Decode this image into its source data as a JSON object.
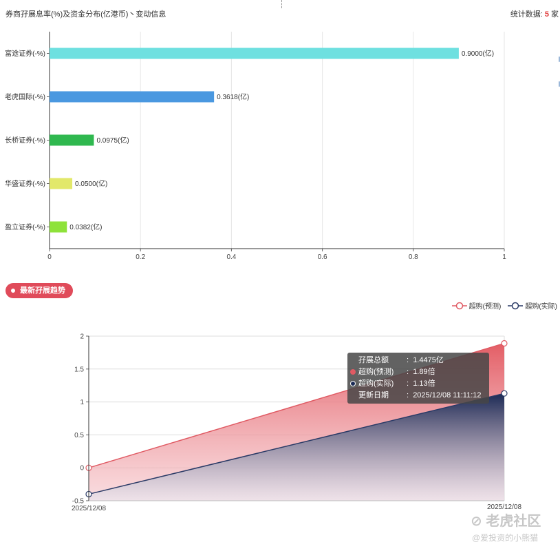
{
  "header": {
    "title": "券商孖展息率(%)及资金分布(亿港币)丶变动信息",
    "stats_label": "统计数据:",
    "stats_count": "5",
    "stats_unit": "家"
  },
  "colors": {
    "red": "#e05a63",
    "navy": "#2a3a66",
    "stats": "#e03c3c",
    "tag": "#e04b5a"
  },
  "chart_data": [
    {
      "type": "bar",
      "orientation": "horizontal",
      "categories": [
        "富途证券(-%)",
        "老虎国际(-%)",
        "长桥证券(-%)",
        "华盛证券(-%)",
        "盈立证券(-%)"
      ],
      "values": [
        0.9,
        0.3618,
        0.0975,
        0.05,
        0.0382
      ],
      "data_labels": [
        "0.9000(亿)",
        "0.3618(亿)",
        "0.0975(亿)",
        "0.0500(亿)",
        "0.0382(亿)"
      ],
      "colors": [
        "#6ee0e0",
        "#4a98e0",
        "#2fb84f",
        "#e2e86a",
        "#8ee23a"
      ],
      "xlim": [
        0,
        1
      ],
      "xticks": [
        "0",
        "0.2",
        "0.4",
        "0.6",
        "0.8",
        "1"
      ],
      "grid": true
    },
    {
      "type": "area",
      "x": [
        "2025/12/08",
        "2025/12/08"
      ],
      "ylim": [
        -0.5,
        2
      ],
      "yticks": [
        "2",
        "1.5",
        "1",
        "0.5",
        "0",
        "-0.5"
      ],
      "series": [
        {
          "name": "超购(预测)",
          "values": [
            0,
            1.89
          ],
          "color": "#e05a63"
        },
        {
          "name": "超购(实际)",
          "values": [
            -0.4,
            1.13
          ],
          "color": "#2a3a66"
        }
      ],
      "legend_position": "top-right",
      "grid": true
    }
  ],
  "trend": {
    "tag_label": "最新孖展趋势"
  },
  "tooltip": {
    "rows": [
      {
        "label": "孖展总额",
        "value": "1.4475亿",
        "dot": ""
      },
      {
        "label": "超购(预测)",
        "value": "1.89倍",
        "dot": "#e05a63"
      },
      {
        "label": "超购(实际)",
        "value": "1.13倍",
        "dot": "#1a2a55"
      },
      {
        "label": "更新日期",
        "value": "2025/12/08 11:11:12",
        "dot": ""
      }
    ],
    "separator": ":"
  },
  "watermark": {
    "logo": "老虎社区",
    "user": "@爱投资的小熊猫"
  }
}
